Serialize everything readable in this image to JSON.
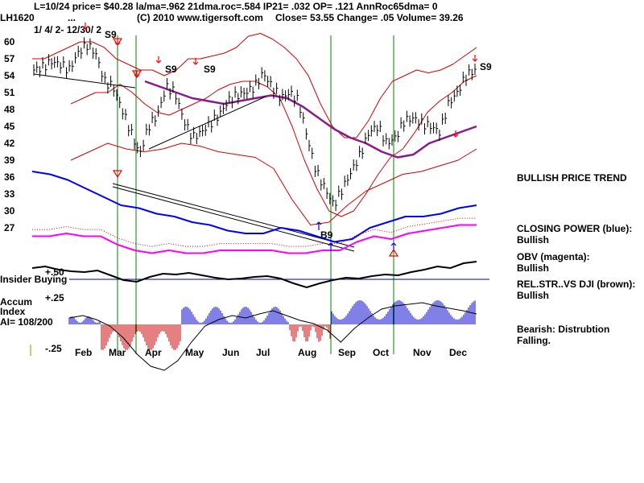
{
  "header": {
    "line1": "L=10/24  price= $40.28  la/ma=.962 21dma.roc=.584 IP21= .032 OP= .121 AnnRoc65dma= 0",
    "line2_left": "LH1620",
    "line2_mid": "(C) 2010 www.tigersoft.com",
    "line2_right": "Close=  53.55  Change= .05 Volume= 39.26",
    "dots": "...",
    "date_range": "1/ 4/ 2- 12/30/ 2"
  },
  "chart_data": {
    "type": "line",
    "price_axis": {
      "ticks": [
        60,
        57,
        54,
        51,
        48,
        45,
        42,
        39,
        36,
        33,
        30,
        27
      ],
      "range": [
        27,
        60
      ]
    },
    "months": [
      "Feb",
      "Mar",
      "Apr",
      "May",
      "Jun",
      "Jul",
      "Aug",
      "Sep",
      "Oct",
      "Nov",
      "Dec"
    ],
    "price": [
      55,
      55.5,
      56.5,
      56,
      55,
      58,
      59.5,
      58,
      53,
      52,
      48,
      44,
      40,
      45,
      47,
      52,
      51,
      46,
      43,
      44,
      45.5,
      47,
      49.5,
      50.5,
      51,
      52,
      54.5,
      52,
      50,
      51,
      49.5,
      43,
      37,
      34,
      31,
      34,
      37,
      40,
      44,
      45,
      42,
      43,
      46,
      46.5,
      45.5,
      45,
      44,
      49,
      51,
      54,
      55
    ],
    "upper_band": [
      57,
      57,
      58,
      59,
      60,
      60,
      59,
      57,
      56,
      55,
      55,
      54,
      55,
      57,
      57,
      57.5,
      58,
      59,
      61,
      61.5,
      60.5,
      59,
      57,
      54,
      49,
      45,
      43,
      43,
      46,
      50,
      53,
      54,
      55,
      54.5,
      55,
      56,
      57.5,
      59
    ],
    "mid_upper_band": [
      49,
      50,
      51,
      51,
      52.5,
      51,
      49,
      47.5,
      47,
      48,
      49,
      50,
      51.5,
      52.5,
      53,
      53,
      52,
      50,
      45,
      39,
      34,
      30,
      29,
      30,
      33,
      36.5,
      39.5,
      41,
      44,
      47.5,
      49.5,
      51,
      53,
      54
    ],
    "ma_line": [
      53,
      52,
      51,
      50,
      49.5,
      49,
      49.5,
      50,
      50.5,
      50,
      48.5,
      46.5,
      44.5,
      43,
      42,
      40.5,
      39.5,
      40,
      42,
      43,
      44,
      45
    ],
    "lower_band": [
      39,
      40.5,
      42,
      41,
      40.5,
      41,
      42,
      41.5,
      40.5,
      40,
      39.5,
      37.5,
      32,
      27.5,
      28,
      31,
      33.5,
      35,
      36.5,
      37,
      38,
      39,
      41
    ],
    "closing_power": [
      37,
      36.5,
      35.5,
      34,
      32.5,
      31,
      30.5,
      29.5,
      29,
      28,
      27.5,
      26.5,
      26,
      26,
      27,
      26.5,
      25.5,
      24.5,
      25,
      27,
      28,
      29,
      29,
      29.5,
      30.5,
      31
    ],
    "obv": [
      25.5,
      25.5,
      26,
      25.5,
      25.5,
      24,
      23,
      22.5,
      23,
      22.5,
      22.5,
      23,
      23,
      23,
      23,
      22.5,
      22.5,
      23,
      23,
      24.5,
      25.5,
      25,
      26,
      26.5,
      27,
      27.5,
      27.5
    ],
    "insider_line_label": "+.50",
    "accum_ticks": [
      "+.25",
      "-.25"
    ],
    "signals": [
      {
        "label": "S9",
        "color": "#000000"
      },
      {
        "label": "S9",
        "color": "#000000"
      },
      {
        "label": "S9",
        "color": "#000000"
      },
      {
        "label": "S9",
        "color": "#000000"
      },
      {
        "label": "B9",
        "color": "#000000"
      }
    ]
  },
  "panels": {
    "insider_buying": "Insider Buying",
    "accum_title": "Accum",
    "accum_index": "Index",
    "accum_ai": "AI= 108/200"
  },
  "sidebar": {
    "trend": "BULLISH PRICE TREND",
    "cp_title": "CLOSING POWER (blue):",
    "cp_value": "Bullish",
    "obv_title": "OBV (magenta):",
    "obv_value": "Bullish",
    "rel_title": "REL.STR..VS DJI (brown):",
    "rel_value": "Bullish",
    "bearish": "Bearish: Distrubtion Falling."
  },
  "colors": {
    "band": "#d40000",
    "price": "#000000",
    "ma": "#8a1a8a",
    "closing_power": "#0000ff",
    "obv": "#ff00ff",
    "rel_str": "#000000",
    "signal_line": "#008000",
    "insider_line": "#000080",
    "accum_up": "#0000cc",
    "accum_down": "#cc0000"
  }
}
